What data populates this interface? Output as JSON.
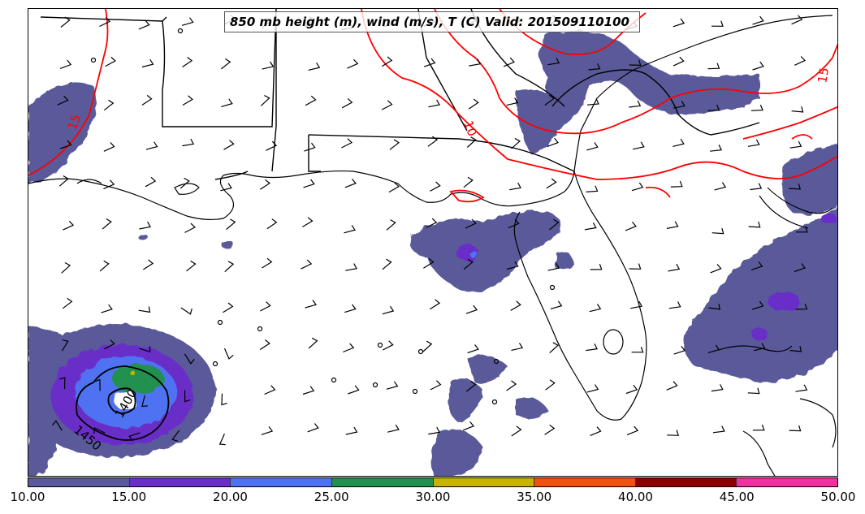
{
  "title": "850 mb height (m), wind (m/s), T (C) Valid: 201509110100",
  "colorbar": {
    "ticks": [
      "10.00",
      "15.00",
      "20.00",
      "25.00",
      "30.00",
      "35.00",
      "40.00",
      "45.00",
      "50.00"
    ],
    "colors": [
      "#5a5a9a",
      "#6a2fc8",
      "#4f72f2",
      "#249050",
      "#c8b400",
      "#f05010",
      "#8b0000",
      "#f030a0"
    ]
  },
  "contours": {
    "temperature_labels": [
      "15",
      "10",
      "15"
    ],
    "height_labels": [
      "1400",
      "1450"
    ],
    "temperature_color": "#ff0000",
    "height_color": "#000000"
  },
  "map": {
    "features": [
      "coastline",
      "state-borders",
      "wind-barbs",
      "wind-speed-shading",
      "hurricane-center"
    ]
  }
}
